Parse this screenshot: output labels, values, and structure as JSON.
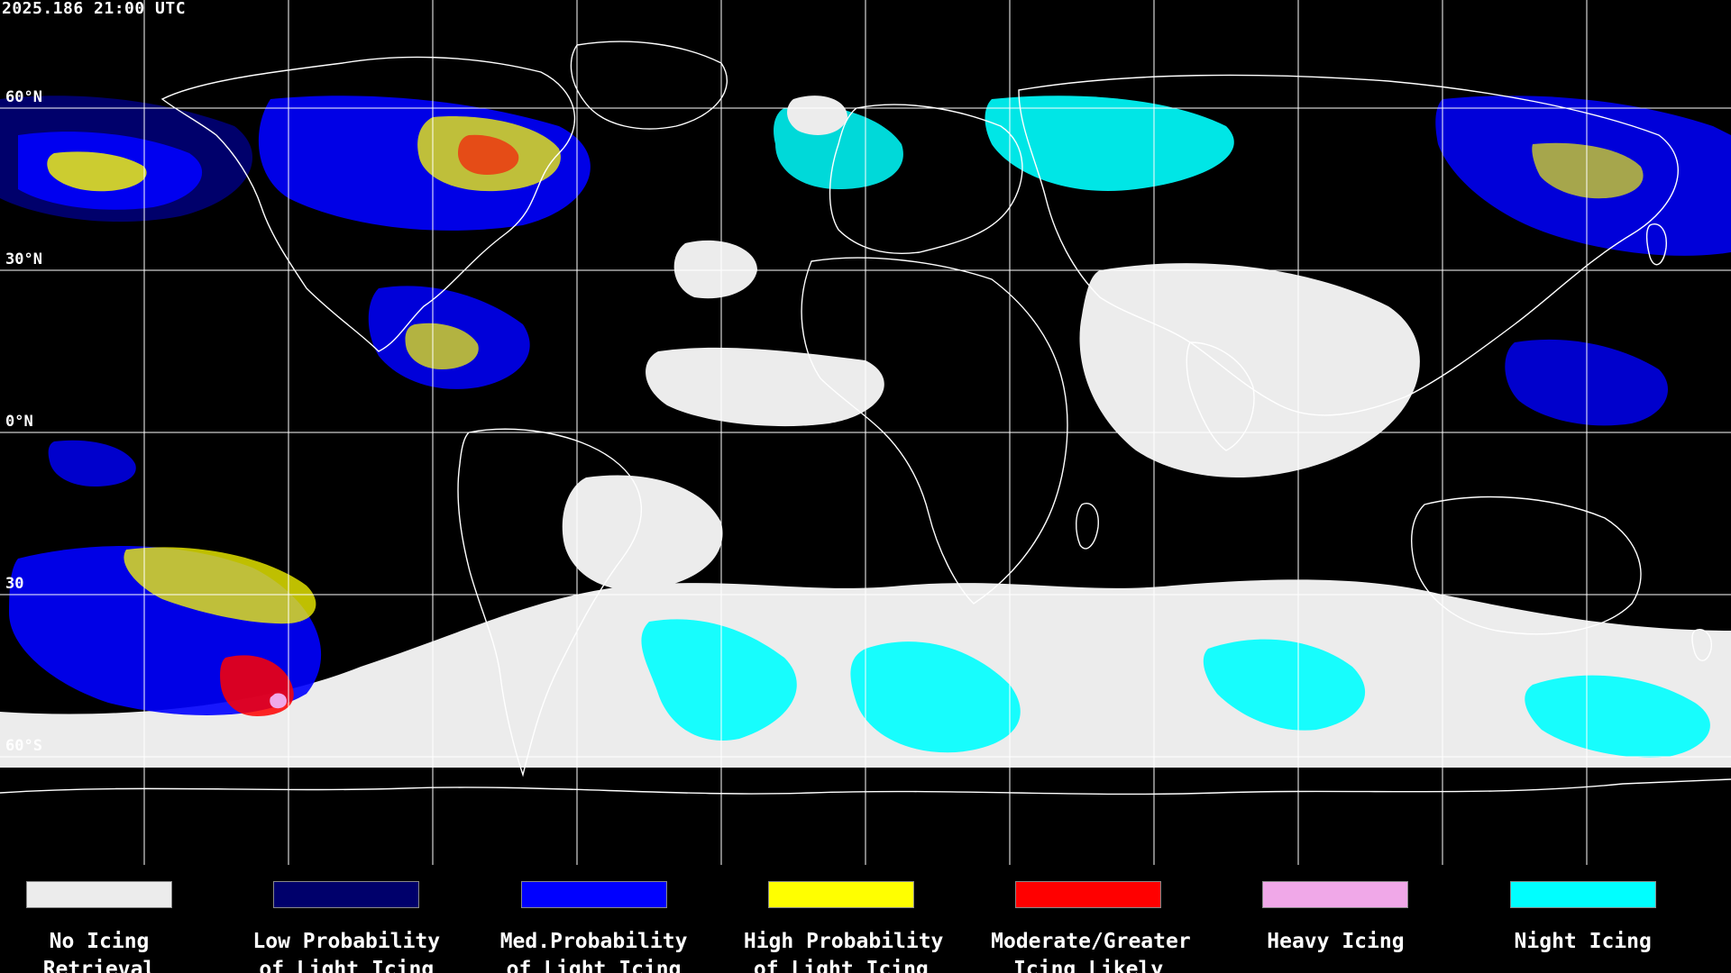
{
  "header": {
    "timestamp": "2025.186 21:00 UTC"
  },
  "grid": {
    "lat_labels": [
      {
        "text": "60°N",
        "lat": 60
      },
      {
        "text": "30°N",
        "lat": 30
      },
      {
        "text": "0°N",
        "lat": 0
      },
      {
        "text": "30",
        "lat": -30
      },
      {
        "text": "60°S",
        "lat": -60
      }
    ],
    "lon_lines": 12
  },
  "legend": [
    {
      "line1": "No Icing",
      "line2": "Retrieval",
      "color": "#ececec"
    },
    {
      "line1": "Low Probability",
      "line2": "of Light Icing",
      "color": "#00006b"
    },
    {
      "line1": "Med.Probability",
      "line2": "of Light Icing",
      "color": "#0000ff"
    },
    {
      "line1": "High Probability",
      "line2": "of Light Icing",
      "color": "#ffff00"
    },
    {
      "line1": "Moderate/Greater",
      "line2": "Icing Likely",
      "color": "#ff0000"
    },
    {
      "line1": "Heavy Icing",
      "line2": "",
      "color": "#f0a8e8"
    },
    {
      "line1": "Night Icing",
      "line2": "",
      "color": "#00ffff"
    }
  ],
  "colors": {
    "background": "#000000",
    "grid": "#ffffff",
    "coastline": "#ffffff"
  }
}
